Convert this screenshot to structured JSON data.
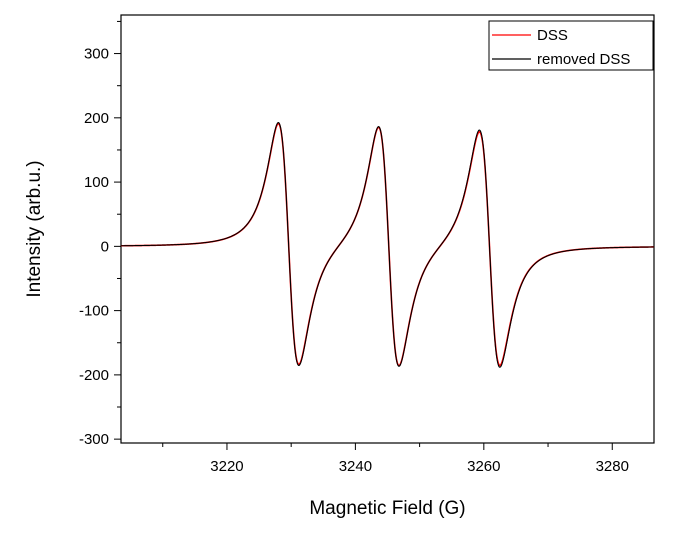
{
  "chart_data": {
    "type": "line",
    "title": "",
    "xlabel": "Magnetic Field (G)",
    "ylabel": "Intensity (arb.u.)",
    "xlim": [
      3203.5,
      3286.5
    ],
    "ylim": [
      -306,
      360
    ],
    "xticks": [
      3220,
      3240,
      3260,
      3280
    ],
    "yticks": [
      -300,
      -200,
      -100,
      0,
      100,
      200,
      300
    ],
    "grid": false,
    "legend_position": "top-right",
    "series": [
      {
        "name": "DSS",
        "color": "#ff0000",
        "peaks": [
          {
            "center": 3229.6,
            "amplitude": 335
          },
          {
            "center": 3245.2,
            "amplitude": 333
          },
          {
            "center": 3260.9,
            "amplitude": 325
          }
        ]
      },
      {
        "name": "removed DSS",
        "color": "#000000",
        "peaks": [
          {
            "center": 3229.6,
            "amplitude": 338
          },
          {
            "center": 3245.2,
            "amplitude": 335
          },
          {
            "center": 3260.9,
            "amplitude": 330
          }
        ]
      }
    ]
  }
}
